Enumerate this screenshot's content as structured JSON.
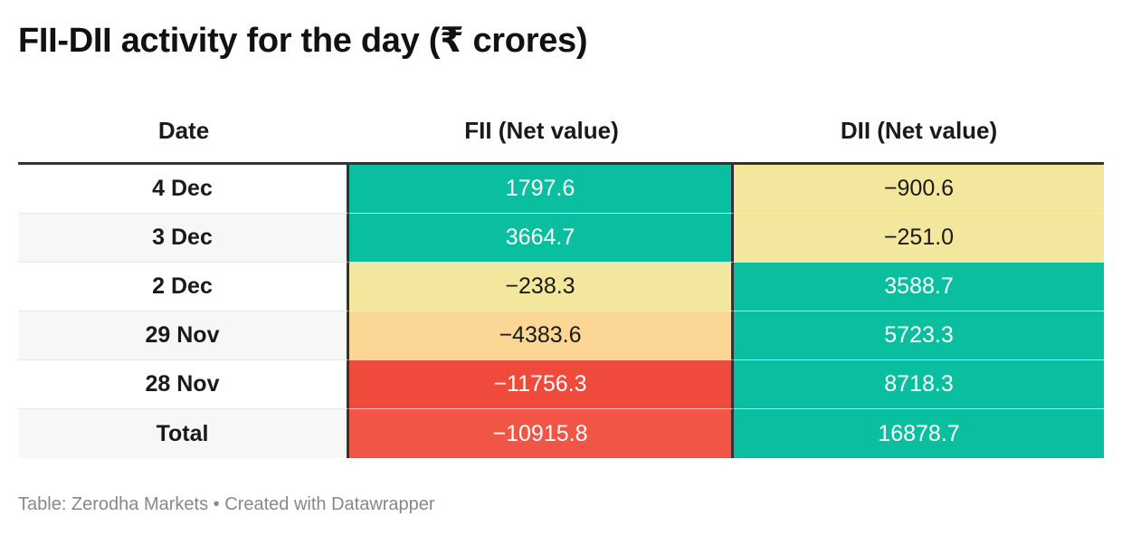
{
  "title": "FII-DII activity for the day (₹ crores)",
  "footer": {
    "source_label": "Table: Zerodha Markets",
    "separator": "•",
    "credit": "Created with Datawrapper"
  },
  "colors": {
    "teal": "#0abf9f",
    "pale_yellow": "#f3e69d",
    "light_orange": "#fcd694",
    "red": "#ef4a3c",
    "red_light": "#f15546",
    "row_white": "#ffffff",
    "row_gray": "#f7f7f7",
    "text_light": "#ffffff",
    "text_dark": "#1a1a1a"
  },
  "chart_data": {
    "type": "table",
    "title": "FII-DII activity for the day (₹ crores)",
    "columns": [
      "Date",
      "FII (Net value)",
      "DII (Net value)"
    ],
    "rows": [
      {
        "date": "4 Dec",
        "fii": "1797.6",
        "dii": "−900.6",
        "fii_color": "teal",
        "dii_color": "pale_yellow"
      },
      {
        "date": "3 Dec",
        "fii": "3664.7",
        "dii": "−251.0",
        "fii_color": "teal",
        "dii_color": "pale_yellow"
      },
      {
        "date": "2 Dec",
        "fii": "−238.3",
        "dii": "3588.7",
        "fii_color": "pale_yellow",
        "dii_color": "teal"
      },
      {
        "date": "29 Nov",
        "fii": "−4383.6",
        "dii": "5723.3",
        "fii_color": "light_orange",
        "dii_color": "teal"
      },
      {
        "date": "28 Nov",
        "fii": "−11756.3",
        "dii": "8718.3",
        "fii_color": "red",
        "dii_color": "teal"
      },
      {
        "date": "Total",
        "fii": "−10915.8",
        "dii": "16878.7",
        "fii_color": "red_light",
        "dii_color": "teal"
      }
    ]
  }
}
